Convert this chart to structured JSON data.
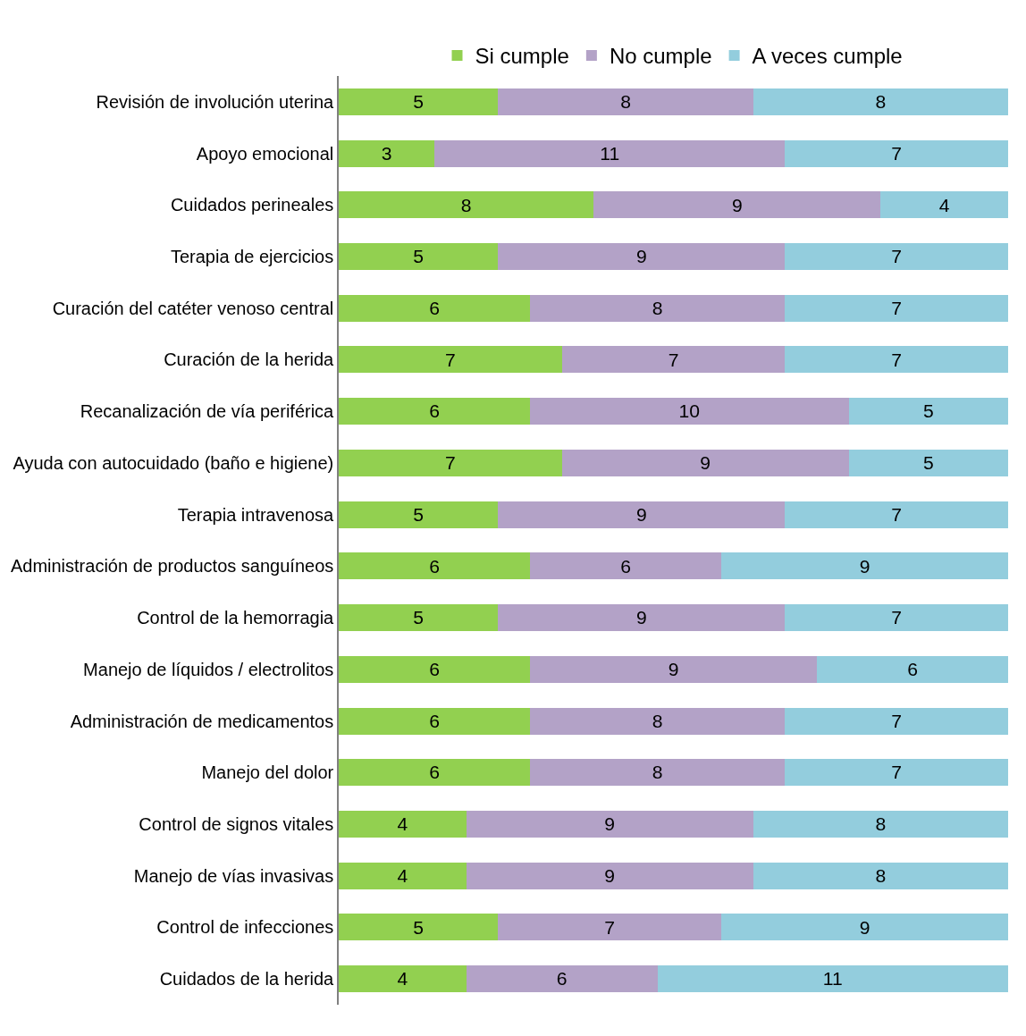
{
  "chart_data": {
    "type": "bar",
    "orientation": "horizontal",
    "stacked": true,
    "data_labels": true,
    "legend": "top",
    "xlim": [
      0,
      21
    ],
    "tick_labels": "y",
    "categories": [
      "Revisión de involución uterina",
      "Apoyo emocional",
      "Cuidados perineales",
      "Terapia de ejercicios",
      "Curación del catéter venoso central",
      "Curación de la herida",
      "Recanalización de vía periférica",
      "Ayuda con autocuidado (baño e higiene)",
      "Terapia intravenosa",
      "Administración de productos sanguíneos",
      "Control de la hemorragia",
      "Manejo de líquidos / electrolitos",
      "Administración de medicamentos",
      "Manejo del dolor",
      "Control de signos vitales",
      "Manejo de vías invasivas",
      "Control de infecciones",
      "Cuidados de la herida"
    ],
    "series": [
      {
        "name": "Si cumple",
        "color": "#92d050",
        "values": [
          5,
          3,
          8,
          5,
          6,
          7,
          6,
          7,
          5,
          6,
          5,
          6,
          6,
          6,
          4,
          4,
          5,
          4
        ]
      },
      {
        "name": "No cumple",
        "color": "#b3a2c7",
        "values": [
          8,
          11,
          9,
          9,
          8,
          7,
          10,
          9,
          9,
          6,
          9,
          9,
          8,
          8,
          9,
          9,
          7,
          6
        ]
      },
      {
        "name": "A veces cumple",
        "color": "#93cddd",
        "values": [
          8,
          7,
          4,
          7,
          7,
          7,
          5,
          5,
          7,
          9,
          7,
          6,
          7,
          7,
          8,
          8,
          9,
          11
        ]
      }
    ]
  }
}
